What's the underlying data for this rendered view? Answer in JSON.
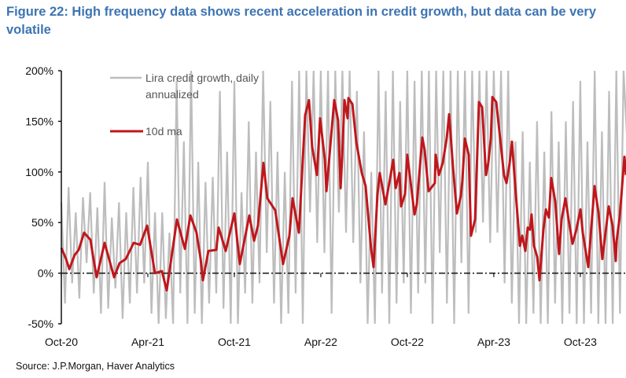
{
  "chart_data": {
    "type": "line",
    "title": "Figure 22: High frequency data shows recent acceleration in credit growth, but data can be very volatile",
    "source": "Source: J.P.Morgan, Haver Analytics",
    "xlabel": "",
    "ylabel": "",
    "x_unit": "months since Oct-20",
    "x_ticks": [
      0,
      6,
      12,
      18,
      24,
      30,
      36
    ],
    "x_tick_labels": [
      "Oct-20",
      "Apr-21",
      "Oct-21",
      "Apr-22",
      "Oct-22",
      "Apr-23",
      "Oct-23"
    ],
    "ylim": [
      -50,
      200
    ],
    "y_ticks": [
      200,
      150,
      100,
      50,
      0,
      -50
    ],
    "y_tick_labels": [
      "200%",
      "150%",
      "100%",
      "50%",
      "0%",
      "-50%"
    ],
    "grid": false,
    "legend_position": "top-left",
    "series": [
      {
        "name": "Lira credit growth, daily annualized",
        "legend_line1": "Lira credit growth, daily",
        "legend_line2": "annualized",
        "color": "#bdbdbd",
        "x_step": 0.25,
        "values": [
          70,
          -30,
          85,
          -10,
          60,
          -25,
          75,
          10,
          80,
          -20,
          65,
          -40,
          90,
          -35,
          55,
          -15,
          70,
          -45,
          60,
          -30,
          85,
          -20,
          95,
          -10,
          110,
          -40,
          60,
          -50,
          60,
          -45,
          40,
          -50,
          190,
          -20,
          130,
          -50,
          200,
          -40,
          110,
          -50,
          90,
          -30,
          95,
          -20,
          180,
          -35,
          120,
          -50,
          190,
          -50,
          80,
          -20,
          150,
          -30,
          120,
          -10,
          200,
          20,
          170,
          -30,
          120,
          -50,
          100,
          -40,
          190,
          -20,
          200,
          -50,
          200,
          60,
          200,
          30,
          200,
          20,
          200,
          -40,
          200,
          60,
          200,
          40,
          200,
          30,
          180,
          -10,
          140,
          -50,
          100,
          -50,
          200,
          -20,
          180,
          -50,
          200,
          -30,
          170,
          -10,
          200,
          -40,
          190,
          -20,
          200,
          -10,
          200,
          -50,
          200,
          20,
          200,
          -30,
          200,
          -50,
          200,
          10,
          200,
          -40,
          200,
          40,
          200,
          50,
          200,
          30,
          200,
          40,
          200,
          -10,
          200,
          -30,
          130,
          -50,
          140,
          -50,
          110,
          -40,
          150,
          -50,
          120,
          -50,
          160,
          -30,
          130,
          -50,
          150,
          -40,
          170,
          -50,
          190,
          -50,
          130,
          -40,
          200,
          -50,
          140,
          -50,
          180,
          -50,
          200,
          -40,
          200,
          130
        ]
      },
      {
        "name": "10d ma",
        "color": "#c0161b",
        "points": [
          [
            0,
            25
          ],
          [
            0.33,
            14
          ],
          [
            0.55,
            4
          ],
          [
            0.93,
            18
          ],
          [
            1.2,
            23
          ],
          [
            1.58,
            40
          ],
          [
            2.02,
            33
          ],
          [
            2.18,
            18
          ],
          [
            2.45,
            -4
          ],
          [
            3.0,
            30
          ],
          [
            3.66,
            -4
          ],
          [
            4.04,
            10
          ],
          [
            4.47,
            14
          ],
          [
            5.02,
            30
          ],
          [
            5.46,
            28
          ],
          [
            5.95,
            47
          ],
          [
            6.49,
            0
          ],
          [
            6.98,
            2
          ],
          [
            7.31,
            -17
          ],
          [
            8.02,
            53
          ],
          [
            8.57,
            24
          ],
          [
            8.95,
            57
          ],
          [
            9.38,
            40
          ],
          [
            9.66,
            14
          ],
          [
            9.82,
            -7
          ],
          [
            10.2,
            22
          ],
          [
            10.75,
            23
          ],
          [
            10.91,
            45
          ],
          [
            11.4,
            22
          ],
          [
            12.0,
            59
          ],
          [
            12.38,
            9
          ],
          [
            13.04,
            57
          ],
          [
            13.37,
            32
          ],
          [
            13.64,
            47
          ],
          [
            14.02,
            109
          ],
          [
            14.29,
            74
          ],
          [
            14.84,
            62
          ],
          [
            15.38,
            9
          ],
          [
            15.82,
            37
          ],
          [
            16.04,
            74
          ],
          [
            16.48,
            40
          ],
          [
            16.91,
            156
          ],
          [
            17.18,
            171
          ],
          [
            17.4,
            125
          ],
          [
            17.73,
            97
          ],
          [
            17.95,
            153
          ],
          [
            18.28,
            112
          ],
          [
            18.39,
            81
          ],
          [
            18.93,
            171
          ],
          [
            19.2,
            151
          ],
          [
            19.37,
            84
          ],
          [
            19.48,
            115
          ],
          [
            19.64,
            171
          ],
          [
            19.86,
            153
          ],
          [
            19.91,
            173
          ],
          [
            20.19,
            167
          ],
          [
            20.46,
            130
          ],
          [
            20.84,
            99
          ],
          [
            21.11,
            86
          ],
          [
            21.49,
            24
          ],
          [
            21.66,
            6
          ],
          [
            21.93,
            78
          ],
          [
            22.09,
            99
          ],
          [
            22.48,
            68
          ],
          [
            22.75,
            89
          ],
          [
            23.02,
            112
          ],
          [
            23.19,
            84
          ],
          [
            23.46,
            99
          ],
          [
            23.57,
            66
          ],
          [
            23.84,
            78
          ],
          [
            24.0,
            117
          ],
          [
            24.5,
            58
          ],
          [
            24.66,
            68
          ],
          [
            25.04,
            134
          ],
          [
            25.2,
            122
          ],
          [
            25.48,
            81
          ],
          [
            25.91,
            89
          ],
          [
            25.97,
            117
          ],
          [
            26.19,
            97
          ],
          [
            26.46,
            109
          ],
          [
            26.73,
            133
          ],
          [
            26.9,
            157
          ],
          [
            27.17,
            105
          ],
          [
            27.44,
            59
          ],
          [
            27.71,
            76
          ],
          [
            27.82,
            91
          ],
          [
            27.99,
            133
          ],
          [
            28.26,
            117
          ],
          [
            28.42,
            37
          ],
          [
            28.7,
            53
          ],
          [
            28.97,
            169
          ],
          [
            29.19,
            164
          ],
          [
            29.46,
            97
          ],
          [
            29.62,
            109
          ],
          [
            29.79,
            133
          ],
          [
            29.9,
            174
          ],
          [
            30.17,
            169
          ],
          [
            30.44,
            133
          ],
          [
            30.71,
            97
          ],
          [
            30.88,
            89
          ],
          [
            31.1,
            109
          ],
          [
            31.26,
            130
          ],
          [
            31.53,
            78
          ],
          [
            31.81,
            27
          ],
          [
            31.97,
            37
          ],
          [
            32.19,
            22
          ],
          [
            32.35,
            45
          ],
          [
            32.51,
            43
          ],
          [
            32.62,
            58
          ],
          [
            32.79,
            27
          ],
          [
            33.01,
            16
          ],
          [
            33.17,
            -7
          ],
          [
            33.44,
            43
          ],
          [
            33.61,
            63
          ],
          [
            33.82,
            55
          ],
          [
            33.99,
            94
          ],
          [
            34.26,
            71
          ],
          [
            34.53,
            19
          ],
          [
            34.7,
            53
          ],
          [
            34.97,
            74
          ],
          [
            35.19,
            53
          ],
          [
            35.46,
            29
          ],
          [
            35.73,
            43
          ],
          [
            36.01,
            63
          ],
          [
            36.17,
            40
          ],
          [
            36.55,
            6
          ],
          [
            36.99,
            86
          ],
          [
            37.26,
            60
          ],
          [
            37.53,
            14
          ],
          [
            37.97,
            66
          ],
          [
            38.24,
            47
          ],
          [
            38.46,
            12
          ],
          [
            38.52,
            32
          ],
          [
            38.73,
            55
          ],
          [
            39.06,
            115
          ],
          [
            39.17,
            97
          ]
        ]
      }
    ]
  }
}
